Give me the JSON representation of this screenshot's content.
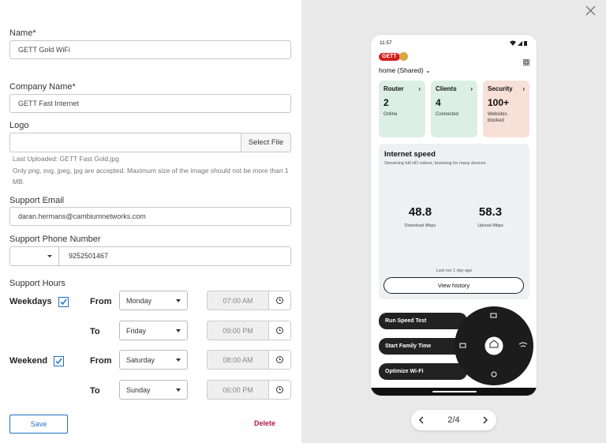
{
  "form": {
    "name": {
      "label": "Name*",
      "value": "GETT Gold WiFi"
    },
    "company_name": {
      "label": "Company Name*",
      "value": "GETT Fast Internet"
    },
    "logo": {
      "label": "Logo",
      "button": "Select File",
      "last_uploaded": "Last Uploaded: GETT Fast Gold.jpg",
      "hint": "Only png, svg, jpeg, jpg are accepted. Maximum size of the image should not be more than 1 MB."
    },
    "support_email": {
      "label": "Support Email",
      "value": "daran.hermans@cambiumnetworks.com"
    },
    "support_phone": {
      "label": "Support Phone Number",
      "value": "9252501467"
    },
    "support_hours": {
      "label": "Support Hours",
      "rows": [
        {
          "group": "Weekdays",
          "from_label": "From",
          "from_day": "Monday",
          "from_time": "07:00 AM",
          "to_label": "To",
          "to_day": "Friday",
          "to_time": "09:00 PM"
        },
        {
          "group": "Weekend",
          "from_label": "From",
          "from_day": "Saturday",
          "from_time": "08:00 AM",
          "to_label": "To",
          "to_day": "Sunday",
          "to_time": "06:00 PM"
        }
      ]
    },
    "save": "Save",
    "delete": "Delete"
  },
  "preview": {
    "time": "11:57",
    "logo": "GETT",
    "location": "home (Shared)",
    "cards": [
      {
        "title": "Router",
        "count": "2",
        "sub": "Online"
      },
      {
        "title": "Clients",
        "count": "4",
        "sub": "Connected"
      },
      {
        "title": "Security",
        "count": "100+",
        "sub": "Websites blocked"
      }
    ],
    "speed": {
      "title": "Internet speed",
      "subtitle": "Streaming full HD videos, browsing for many devices",
      "download": "48.8",
      "download_label": "Download Mbps",
      "upload": "58.3",
      "upload_label": "Upload Mbps",
      "last_run": "Last run 1 day ago",
      "button": "View history"
    },
    "actions": [
      "Run Speed Test",
      "Start Family Time",
      "Optimize Wi-Fi"
    ]
  },
  "pager": {
    "label": "2/4"
  }
}
